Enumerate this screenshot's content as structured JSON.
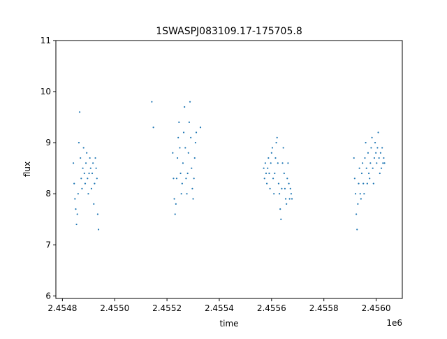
{
  "chart_data": {
    "type": "scatter",
    "title": "1SWASPJ083109.17-175705.8",
    "xlabel": "time",
    "ylabel": "flux",
    "x_offset_label": "1e6",
    "xlim": [
      2454775,
      2456100
    ],
    "ylim": [
      5.95,
      11.0
    ],
    "x_ticks": [
      2454800,
      2455000,
      2455200,
      2455400,
      2455600,
      2455800,
      2456000
    ],
    "x_tick_labels": [
      "2.4548",
      "2.4550",
      "2.4552",
      "2.4554",
      "2.4556",
      "2.4558",
      "2.4560"
    ],
    "y_ticks": [
      6,
      7,
      8,
      9,
      10,
      11
    ],
    "y_tick_labels": [
      "6",
      "7",
      "8",
      "9",
      "10",
      "11"
    ],
    "grid": false,
    "legend": "none",
    "series": [
      {
        "color": "#1f77b4",
        "x": [
          2454842,
          2454845,
          2454848,
          2454851,
          2454854,
          2454857,
          2454860,
          2454863,
          2454866,
          2454869,
          2454872,
          2454875,
          2454878,
          2454881,
          2454884,
          2454887,
          2454890,
          2454893,
          2454896,
          2454899,
          2454902,
          2454905,
          2454908,
          2454911,
          2454914,
          2454917,
          2454920,
          2454923,
          2454926,
          2454929,
          2454932,
          2454935,
          2454938,
          2455142,
          2455148,
          2455222,
          2455225,
          2455228,
          2455231,
          2455234,
          2455237,
          2455240,
          2455243,
          2455246,
          2455249,
          2455252,
          2455255,
          2455258,
          2455261,
          2455264,
          2455267,
          2455270,
          2455273,
          2455276,
          2455279,
          2455282,
          2455285,
          2455288,
          2455291,
          2455294,
          2455297,
          2455300,
          2455303,
          2455306,
          2455309,
          2455312,
          2455328,
          2455570,
          2455573,
          2455576,
          2455579,
          2455582,
          2455585,
          2455588,
          2455591,
          2455594,
          2455597,
          2455600,
          2455603,
          2455606,
          2455609,
          2455612,
          2455615,
          2455618,
          2455621,
          2455624,
          2455627,
          2455630,
          2455633,
          2455636,
          2455639,
          2455642,
          2455645,
          2455648,
          2455651,
          2455654,
          2455657,
          2455660,
          2455663,
          2455666,
          2455669,
          2455672,
          2455675,
          2455678,
          2455915,
          2455918,
          2455921,
          2455924,
          2455927,
          2455930,
          2455933,
          2455936,
          2455939,
          2455942,
          2455945,
          2455948,
          2455951,
          2455954,
          2455957,
          2455960,
          2455963,
          2455966,
          2455969,
          2455972,
          2455975,
          2455978,
          2455981,
          2455984,
          2455987,
          2455990,
          2455993,
          2455996,
          2455999,
          2456002,
          2456005,
          2456008,
          2456011,
          2456014,
          2456017,
          2456020,
          2456023,
          2456026,
          2456029,
          2456032
        ],
        "y": [
          8.6,
          8.2,
          7.9,
          7.7,
          7.4,
          7.6,
          8.0,
          9.0,
          9.6,
          8.7,
          8.3,
          8.1,
          8.5,
          8.9,
          8.4,
          8.2,
          8.6,
          8.8,
          8.3,
          8.0,
          8.4,
          8.7,
          8.5,
          8.1,
          8.4,
          8.6,
          7.8,
          8.2,
          8.7,
          8.5,
          8.3,
          7.6,
          7.3,
          9.8,
          9.3,
          8.8,
          8.3,
          7.9,
          7.6,
          7.8,
          8.3,
          8.7,
          9.1,
          9.4,
          8.9,
          8.4,
          8.0,
          8.2,
          8.6,
          9.2,
          9.7,
          8.9,
          8.3,
          8.0,
          8.4,
          8.8,
          9.4,
          9.8,
          9.1,
          8.5,
          8.1,
          7.9,
          8.3,
          8.7,
          9.0,
          9.2,
          9.3,
          8.5,
          8.3,
          8.6,
          8.4,
          8.2,
          8.5,
          8.7,
          8.4,
          8.1,
          8.6,
          8.8,
          8.9,
          8.3,
          8.0,
          8.4,
          8.7,
          9.0,
          9.1,
          8.6,
          8.2,
          8.0,
          7.7,
          7.5,
          8.1,
          8.6,
          8.9,
          8.4,
          8.1,
          7.9,
          7.8,
          8.3,
          8.6,
          8.2,
          7.9,
          8.1,
          8.0,
          7.9,
          8.7,
          8.3,
          8.0,
          7.6,
          7.3,
          7.8,
          8.2,
          8.5,
          8.0,
          7.9,
          8.4,
          8.6,
          8.2,
          8.0,
          8.7,
          9.0,
          8.5,
          8.2,
          8.8,
          8.4,
          8.3,
          8.6,
          8.9,
          9.1,
          8.5,
          8.2,
          8.7,
          9.0,
          8.8,
          8.6,
          8.9,
          9.2,
          8.7,
          8.4,
          8.8,
          8.5,
          8.9,
          8.6,
          8.7,
          8.6
        ]
      }
    ]
  }
}
